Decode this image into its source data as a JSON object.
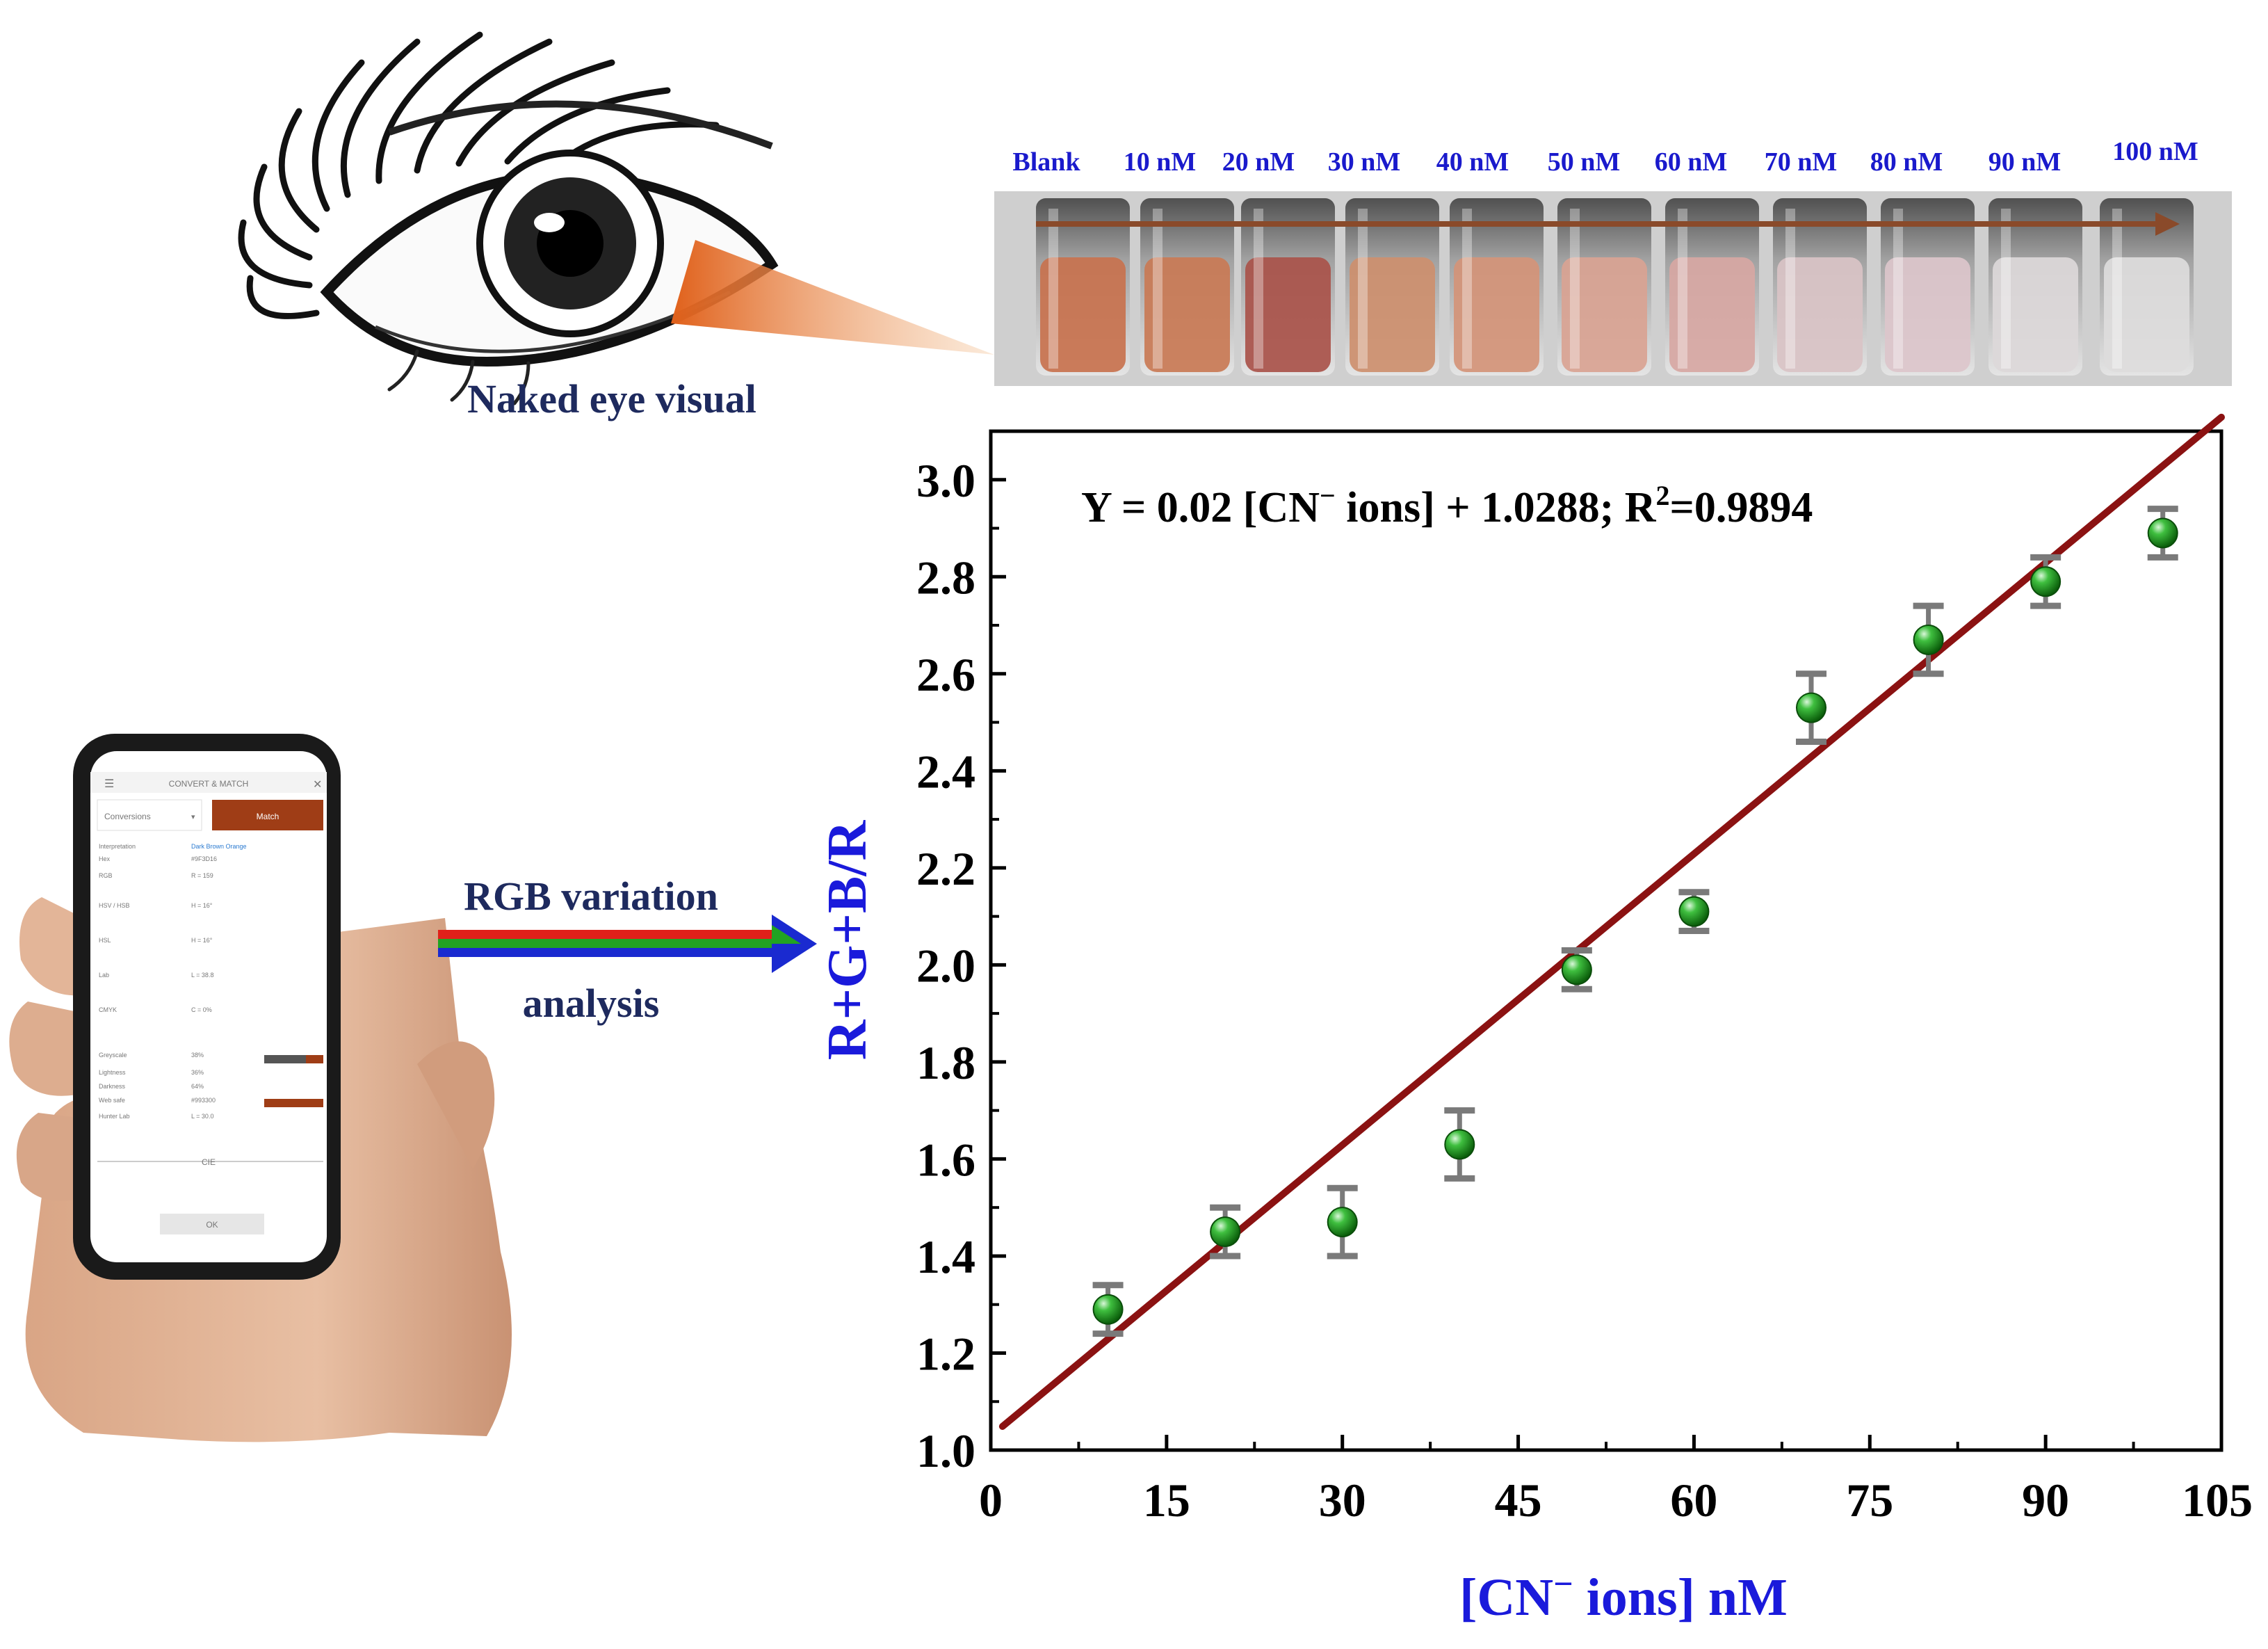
{
  "eye": {
    "caption": "Naked eye visual"
  },
  "vials": {
    "labels": [
      "Blank",
      "10 nM",
      "20 nM",
      "30 nM",
      "40 nM",
      "50 nM",
      "60 nM",
      "70 nM",
      "80 nM",
      "90 nM",
      "100 nM"
    ],
    "colors": [
      "#c8724e",
      "#c97a55",
      "#a9524a",
      "#cd8f6e",
      "#d49478",
      "#d9a393",
      "#d7a7a3",
      "#d9c3c6",
      "#dcc6cb",
      "#dcd8d9",
      "#dddcdc"
    ]
  },
  "arrow": {
    "line1": "RGB variation",
    "line2": "analysis"
  },
  "colors": {
    "axis_label": "#1a1adb",
    "fit_line": "#8b1212",
    "marker": "#1e9a1e",
    "error_bar": "#7a7a7a"
  },
  "phone": {
    "header": "CONVERT & MATCH",
    "dropdown": "Conversions",
    "button": "Match",
    "rows": [
      {
        "k": "Interpretation",
        "v": "Dark Brown Orange"
      },
      {
        "k": "Hex",
        "v": "#9F3D16"
      },
      {
        "k": "RGB",
        "v": "R = 159"
      },
      {
        "k": "HSV / HSB",
        "v": "H = 16°"
      },
      {
        "k": "HSL",
        "v": "H = 16°"
      },
      {
        "k": "Lab",
        "v": "L = 38.8"
      },
      {
        "k": "CMYK",
        "v": "C = 0%"
      },
      {
        "k": "Greyscale",
        "v": "38%"
      },
      {
        "k": "Lightness",
        "v": "36%"
      },
      {
        "k": "Darkness",
        "v": "64%"
      },
      {
        "k": "Web safe",
        "v": "#993300"
      },
      {
        "k": "Hunter Lab",
        "v": "L = 30.0"
      }
    ],
    "section": "CIE",
    "ok": "OK"
  },
  "chart_data": {
    "type": "scatter",
    "equation": {
      "prefix": "Y = 0.02 [CN",
      "sup1": "−",
      "mid": " ions] + 1.0288; R",
      "sup2": "2",
      "suffix": "=0.9894"
    },
    "xlabel": {
      "prefix": "[CN",
      "sup": "−",
      "suffix": " ions] nM"
    },
    "ylabel": "R+G+B/R",
    "xlim": [
      0,
      105
    ],
    "ylim": [
      1.0,
      3.1
    ],
    "xticks": [
      0,
      15,
      30,
      45,
      60,
      75,
      90,
      105
    ],
    "yticks": [
      1.0,
      1.2,
      1.4,
      1.6,
      1.8,
      2.0,
      2.2,
      2.4,
      2.6,
      2.8,
      3.0
    ],
    "xticklabels": [
      "0",
      "15",
      "30",
      "45",
      "60",
      "75",
      "90",
      "105"
    ],
    "yticklabels": [
      "1.0",
      "1.2",
      "1.4",
      "1.6",
      "1.8",
      "2.0",
      "2.2",
      "2.4",
      "2.6",
      "2.8",
      "3.0"
    ],
    "series": [
      {
        "x": [
          10,
          20,
          30,
          40,
          50,
          60,
          70,
          80,
          90,
          100
        ],
        "y": [
          1.29,
          1.45,
          1.47,
          1.63,
          1.99,
          2.11,
          2.53,
          2.67,
          2.79,
          2.89
        ],
        "err": [
          0.05,
          0.05,
          0.07,
          0.07,
          0.04,
          0.04,
          0.07,
          0.07,
          0.05,
          0.05
        ]
      }
    ],
    "fit": {
      "slope": 0.02,
      "intercept": 1.0288,
      "x_range": [
        1,
        105
      ]
    },
    "grid": false
  }
}
